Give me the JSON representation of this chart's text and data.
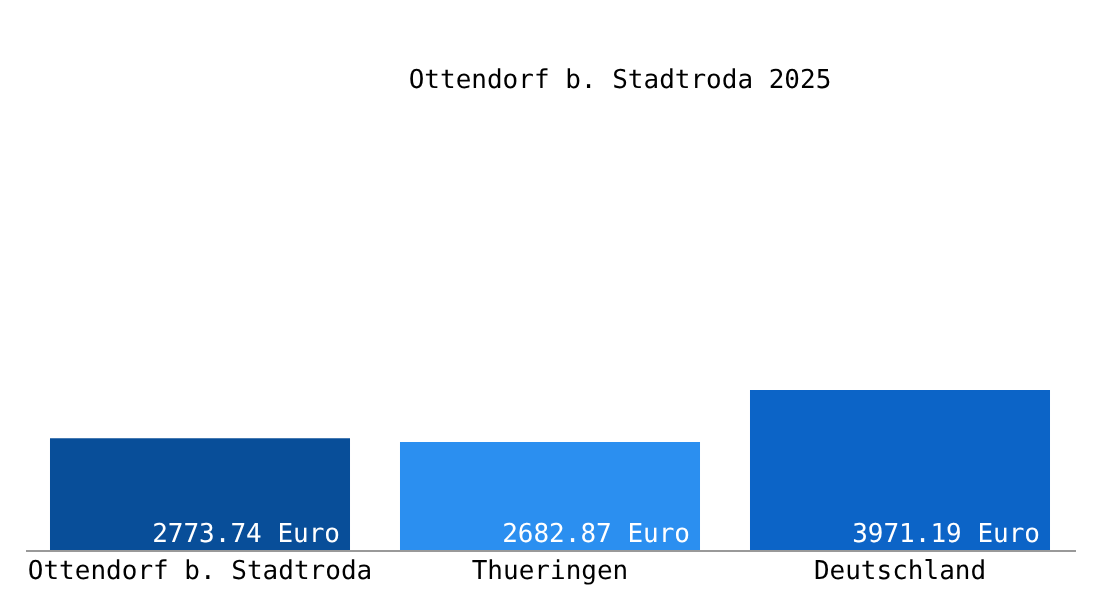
{
  "chart_data": {
    "type": "bar",
    "title": "Ottendorf b. Stadtroda 2025",
    "categories": [
      "Ottendorf b. Stadtroda",
      "Thueringen",
      "Deutschland"
    ],
    "values": [
      2773.74,
      2682.87,
      3971.19
    ],
    "colors": [
      "#084e99",
      "#2b8ff0",
      "#0c64c7"
    ],
    "value_labels": [
      "2773.74 Euro",
      "2682.87 Euro",
      "3971.19 Euro"
    ],
    "grid": false,
    "legend": false
  }
}
